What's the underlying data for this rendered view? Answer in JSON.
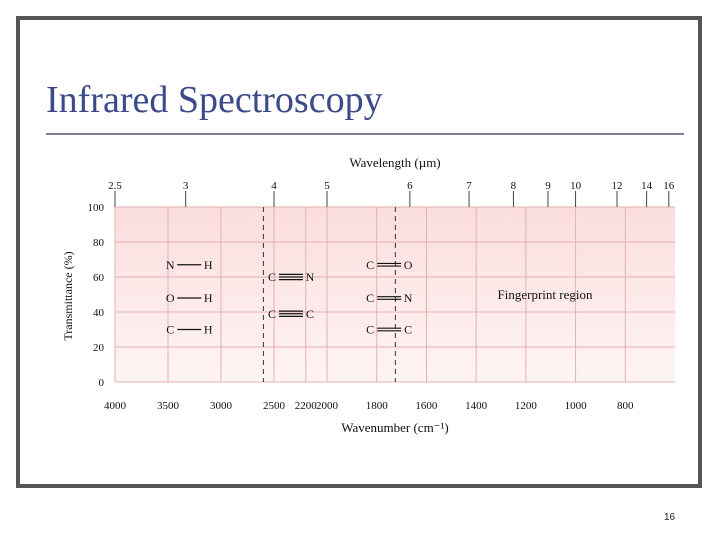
{
  "slide": {
    "title": "Infrared Spectroscopy",
    "page_number": "16"
  },
  "chart_data": {
    "type": "table",
    "top_axis": {
      "label": "Wavelength (µm)",
      "ticks": [
        "2.5",
        "3",
        "4",
        "5",
        "6",
        "7",
        "8",
        "9",
        "10",
        "12",
        "14",
        "16"
      ]
    },
    "bottom_axis": {
      "label": "Wavenumber (cm⁻¹)",
      "ticks": [
        "4000",
        "3500",
        "3000",
        "2500",
        "2200",
        "2000",
        "1800",
        "1600",
        "1400",
        "1200",
        "1000",
        "800"
      ],
      "xlim": [
        4000,
        600
      ]
    },
    "y_axis": {
      "label": "Transmittance (%)",
      "ticks": [
        "100",
        "80",
        "60",
        "40",
        "20",
        "0"
      ],
      "ylim": [
        0,
        100
      ]
    },
    "bond_labels": [
      {
        "left": "N",
        "right": "H",
        "bond": "single",
        "x": 3300,
        "y": 67
      },
      {
        "left": "O",
        "right": "H",
        "bond": "single",
        "x": 3300,
        "y": 48
      },
      {
        "left": "C",
        "right": "H",
        "bond": "single",
        "x": 3300,
        "y": 30
      },
      {
        "left": "C",
        "right": "N",
        "bond": "triple",
        "x": 2340,
        "y": 60
      },
      {
        "left": "C",
        "right": "C",
        "bond": "triple",
        "x": 2340,
        "y": 39
      },
      {
        "left": "C",
        "right": "O",
        "bond": "double",
        "x": 1750,
        "y": 67
      },
      {
        "left": "C",
        "right": "N",
        "bond": "double",
        "x": 1750,
        "y": 48
      },
      {
        "left": "C",
        "right": "C",
        "bond": "double",
        "x": 1750,
        "y": 30
      }
    ],
    "region_label": "Fingerprint region",
    "region_dividers_cm": [
      2600,
      1725
    ],
    "grid": true,
    "colors": {
      "background": "#fde7e7",
      "grid": "#e6b0b0",
      "text": "#111111",
      "title": "#3c4a8a"
    }
  }
}
